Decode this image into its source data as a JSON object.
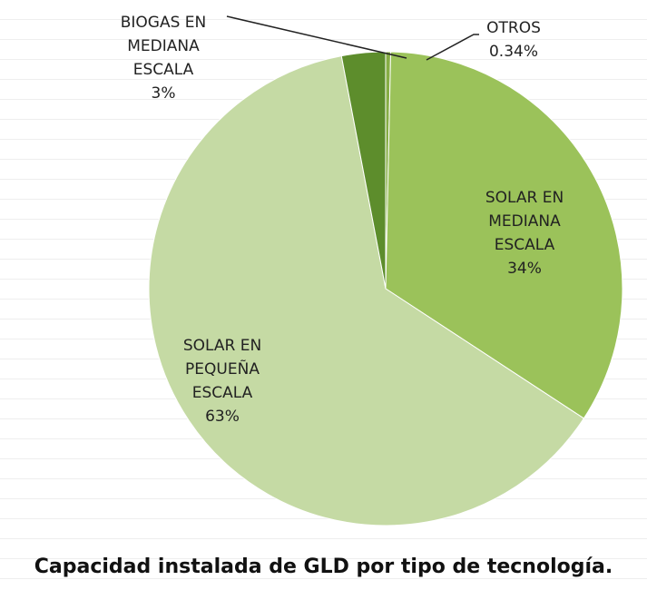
{
  "chart_data": {
    "type": "pie",
    "title": "Capacidad instalada de GLD por tipo de tecnología.",
    "categories": [
      "OTROS",
      "SOLAR EN MEDIANA ESCALA",
      "SOLAR EN PEQUEÑA ESCALA",
      "BIOGAS EN MEDIANA ESCALA"
    ],
    "values": [
      0.34,
      34,
      63,
      3
    ],
    "value_labels": [
      "0.34%",
      "34%",
      "63%",
      "3%"
    ],
    "colors": [
      "#86ad45",
      "#9bc25a",
      "#c5daa4",
      "#5d8d2c"
    ]
  }
}
